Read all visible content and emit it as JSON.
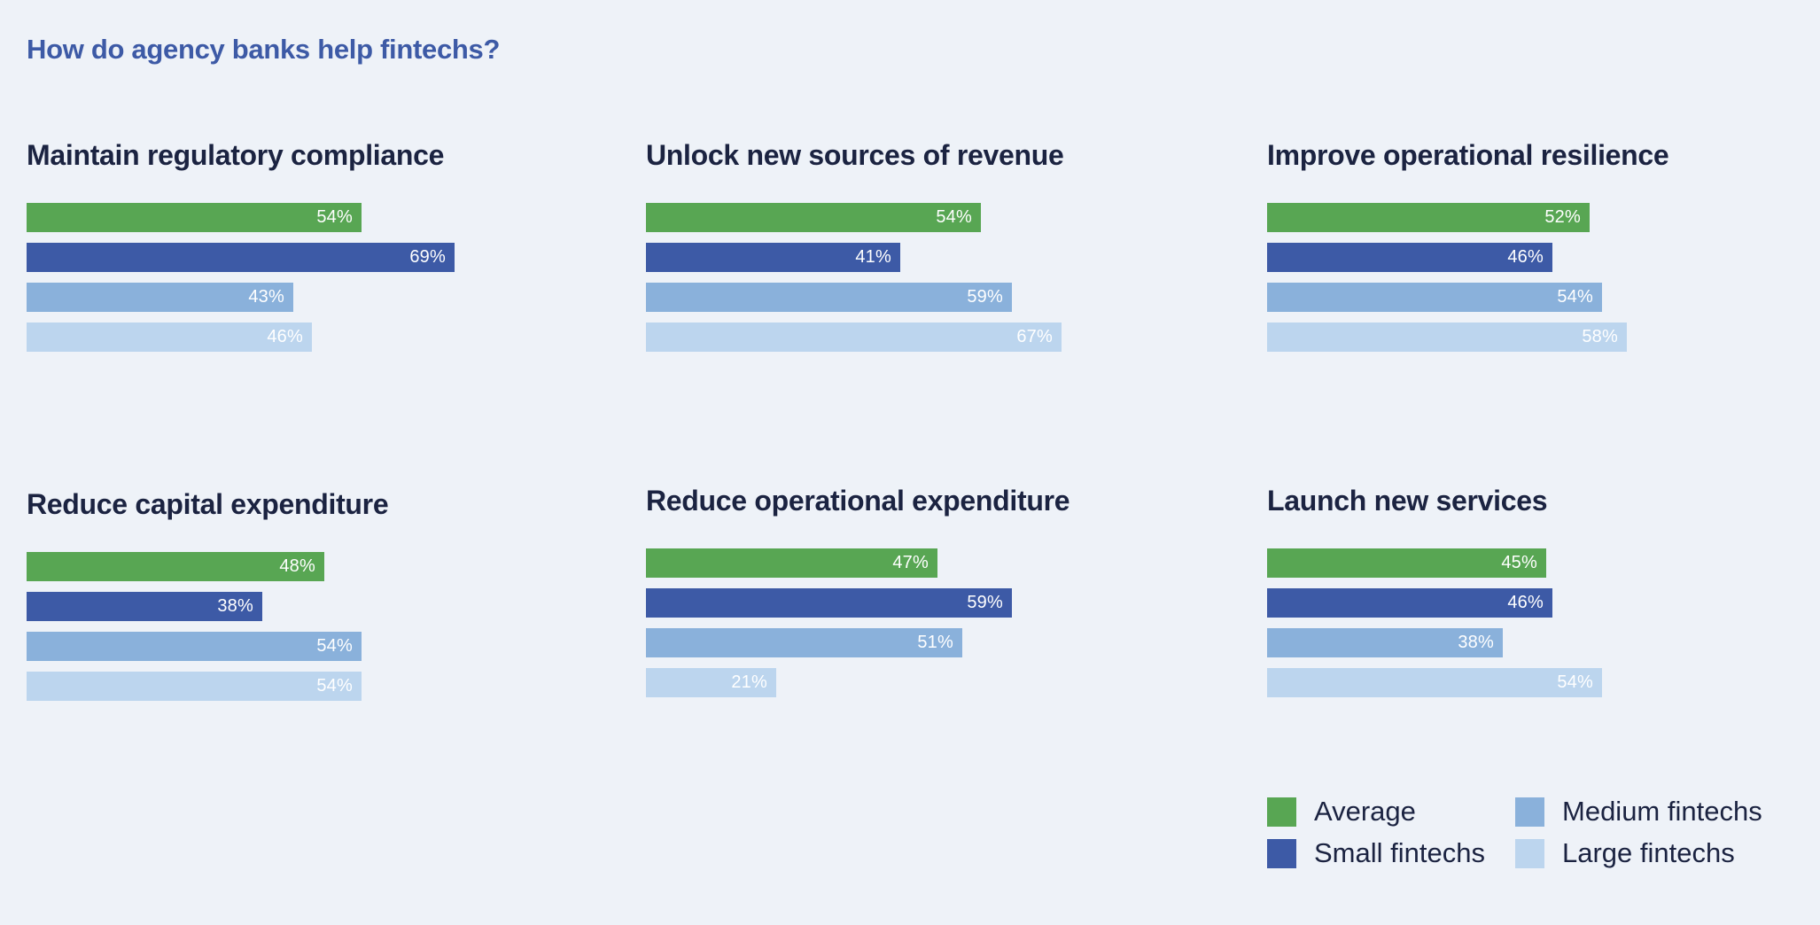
{
  "title": "How do agency banks help fintechs?",
  "colors": {
    "average": "#58a653",
    "small": "#3d5aa6",
    "medium": "#8ab1db",
    "large": "#bcd5ee"
  },
  "legend": {
    "average": "Average",
    "small": "Small fintechs",
    "medium": "Medium fintechs",
    "large": "Large fintechs"
  },
  "chart_data": [
    {
      "type": "bar",
      "title": "Maintain regulatory compliance",
      "series": [
        {
          "name": "Average",
          "value": 54,
          "label": "54%"
        },
        {
          "name": "Small fintechs",
          "value": 69,
          "label": "69%"
        },
        {
          "name": "Medium fintechs",
          "value": 43,
          "label": "43%"
        },
        {
          "name": "Large fintechs",
          "value": 46,
          "label": "46%"
        }
      ]
    },
    {
      "type": "bar",
      "title": "Unlock new sources of revenue",
      "series": [
        {
          "name": "Average",
          "value": 54,
          "label": "54%"
        },
        {
          "name": "Small fintechs",
          "value": 41,
          "label": "41%"
        },
        {
          "name": "Medium fintechs",
          "value": 59,
          "label": "59%"
        },
        {
          "name": "Large fintechs",
          "value": 67,
          "label": "67%"
        }
      ]
    },
    {
      "type": "bar",
      "title": "Improve operational resilience",
      "series": [
        {
          "name": "Average",
          "value": 52,
          "label": "52%"
        },
        {
          "name": "Small fintechs",
          "value": 46,
          "label": "46%"
        },
        {
          "name": "Medium fintechs",
          "value": 54,
          "label": "54%"
        },
        {
          "name": "Large fintechs",
          "value": 58,
          "label": "58%"
        }
      ]
    },
    {
      "type": "bar",
      "title": "Reduce capital expenditure",
      "series": [
        {
          "name": "Average",
          "value": 48,
          "label": "48%"
        },
        {
          "name": "Small fintechs",
          "value": 38,
          "label": "38%"
        },
        {
          "name": "Medium fintechs",
          "value": 54,
          "label": "54%"
        },
        {
          "name": "Large fintechs",
          "value": 54,
          "label": "54%"
        }
      ]
    },
    {
      "type": "bar",
      "title": "Reduce operational expenditure",
      "series": [
        {
          "name": "Average",
          "value": 47,
          "label": "47%"
        },
        {
          "name": "Small fintechs",
          "value": 59,
          "label": "59%"
        },
        {
          "name": "Medium fintechs",
          "value": 51,
          "label": "51%"
        },
        {
          "name": "Large fintechs",
          "value": 21,
          "label": "21%"
        }
      ]
    },
    {
      "type": "bar",
      "title": "Launch new services",
      "series": [
        {
          "name": "Average",
          "value": 45,
          "label": "45%"
        },
        {
          "name": "Small fintechs",
          "value": 46,
          "label": "46%"
        },
        {
          "name": "Medium fintechs",
          "value": 38,
          "label": "38%"
        },
        {
          "name": "Large fintechs",
          "value": 54,
          "label": "54%"
        }
      ]
    }
  ]
}
